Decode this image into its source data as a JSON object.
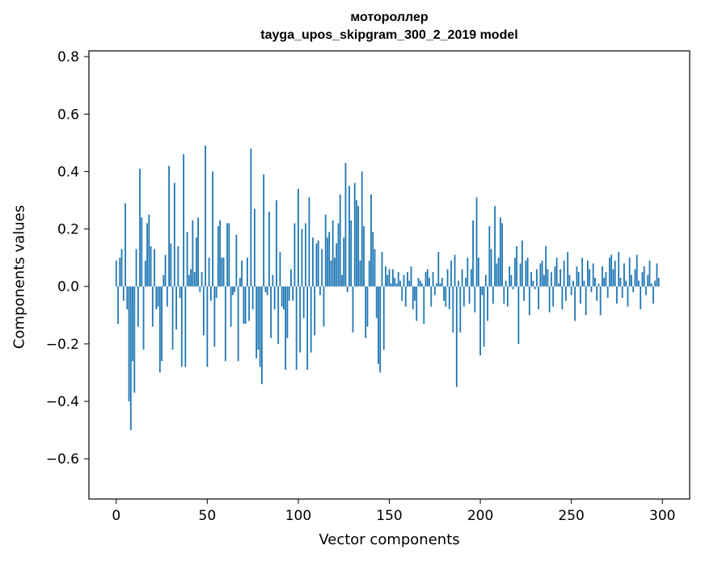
{
  "chart_data": {
    "type": "bar",
    "title": "мотороллер",
    "subtitle": "tayga_upos_skipgram_300_2_2019 model",
    "xlabel": "Vector components",
    "ylabel": "Components values",
    "xlim": [
      -15,
      315
    ],
    "ylim": [
      -0.74,
      0.82
    ],
    "xticks": [
      0,
      50,
      100,
      150,
      200,
      250,
      300
    ],
    "yticks": [
      -0.6,
      -0.4,
      -0.2,
      0.0,
      0.2,
      0.4,
      0.6,
      0.8
    ],
    "grid": false,
    "color": "#1f77b4",
    "x_start": 0,
    "values": [
      0.09,
      -0.13,
      0.1,
      0.13,
      -0.05,
      0.29,
      -0.08,
      -0.4,
      -0.5,
      -0.26,
      -0.37,
      0.13,
      -0.14,
      0.41,
      0.24,
      -0.22,
      0.09,
      0.22,
      0.25,
      0.14,
      -0.14,
      0.13,
      -0.08,
      -0.07,
      -0.3,
      -0.26,
      0.04,
      0.11,
      -0.07,
      0.42,
      0.15,
      -0.22,
      0.36,
      -0.15,
      0.14,
      -0.04,
      -0.28,
      0.46,
      -0.28,
      0.19,
      0.04,
      0.06,
      0.23,
      0.05,
      0.17,
      0.24,
      -0.02,
      0.05,
      -0.17,
      0.49,
      -0.28,
      0.1,
      -0.05,
      0.4,
      -0.21,
      -0.04,
      0.21,
      0.23,
      0.1,
      0.1,
      -0.26,
      0.22,
      0.22,
      -0.14,
      -0.03,
      -0.02,
      0.18,
      -0.26,
      0.03,
      0.09,
      -0.13,
      -0.13,
      0.1,
      -0.12,
      0.48,
      -0.08,
      0.27,
      -0.25,
      -0.22,
      -0.28,
      -0.34,
      0.39,
      -0.02,
      -0.03,
      0.26,
      -0.18,
      0.04,
      -0.08,
      0.3,
      -0.2,
      0.12,
      -0.07,
      -0.08,
      -0.29,
      -0.18,
      -0.05,
      0.06,
      -0.05,
      0.22,
      -0.29,
      0.34,
      -0.23,
      0.2,
      -0.11,
      0.22,
      -0.29,
      0.31,
      -0.23,
      0.17,
      -0.17,
      0.15,
      0.16,
      -0.03,
      0.13,
      -0.14,
      0.25,
      0.17,
      0.19,
      0.09,
      0.23,
      0.1,
      0.15,
      0.22,
      0.32,
      0.04,
      0.17,
      0.43,
      -0.02,
      0.35,
      0.23,
      -0.16,
      0.36,
      0.3,
      0.28,
      0.09,
      0.4,
      0.21,
      -0.18,
      -0.14,
      0.09,
      0.32,
      0.19,
      0.13,
      -0.11,
      -0.27,
      -0.3,
      0.12,
      -0.22,
      0.07,
      0.04,
      0.06,
      0.01,
      0.06,
      0.03,
      0.01,
      0.05,
      0.02,
      -0.05,
      0.04,
      -0.07,
      0.05,
      0.02,
      0.07,
      -0.08,
      -0.05,
      -0.12,
      0.03,
      0.02,
      0.01,
      -0.13,
      0.05,
      0.06,
      0.03,
      -0.07,
      0.05,
      -0.03,
      0.01,
      0.12,
      0.01,
      0.03,
      -0.05,
      -0.07,
      0.06,
      -0.08,
      0.09,
      -0.16,
      0.11,
      -0.35,
      0.02,
      -0.16,
      0.06,
      -0.07,
      0.03,
      0.1,
      -0.06,
      0.06,
      0.23,
      -0.09,
      0.31,
      0.1,
      -0.24,
      -0.03,
      -0.21,
      0.04,
      -0.12,
      0.21,
      0.13,
      -0.06,
      0.28,
      0.08,
      0.1,
      0.24,
      0.22,
      -0.06,
      0.02,
      -0.07,
      0.07,
      0.04,
      -0.01,
      0.1,
      0.14,
      -0.2,
      0.08,
      0.16,
      -0.05,
      0.09,
      0.1,
      -0.1,
      0.05,
      0.02,
      -0.01,
      0.06,
      -0.08,
      0.08,
      0.09,
      0.04,
      0.14,
      0.06,
      -0.09,
      0.05,
      -0.07,
      0.07,
      0.1,
      0.01,
      0.06,
      -0.08,
      0.09,
      -0.05,
      0.12,
      0.04,
      -0.03,
      0.02,
      -0.12,
      0.07,
      0.05,
      -0.06,
      0.1,
      0.02,
      -0.1,
      0.09,
      0.06,
      -0.02,
      0.08,
      0.03,
      -0.05,
      0.01,
      -0.1,
      0.07,
      0.03,
      0.05,
      -0.04,
      0.1,
      0.11,
      0.06,
      0.09,
      -0.06,
      0.12,
      0.03,
      -0.04,
      0.08,
      0.02,
      -0.07,
      0.1,
      0.04,
      -0.02,
      0.06,
      0.11,
      0.02,
      -0.08,
      0.05,
      0.07,
      -0.03,
      0.04,
      0.09,
      0.01,
      -0.06,
      0.02,
      0.08,
      0.03
    ]
  }
}
